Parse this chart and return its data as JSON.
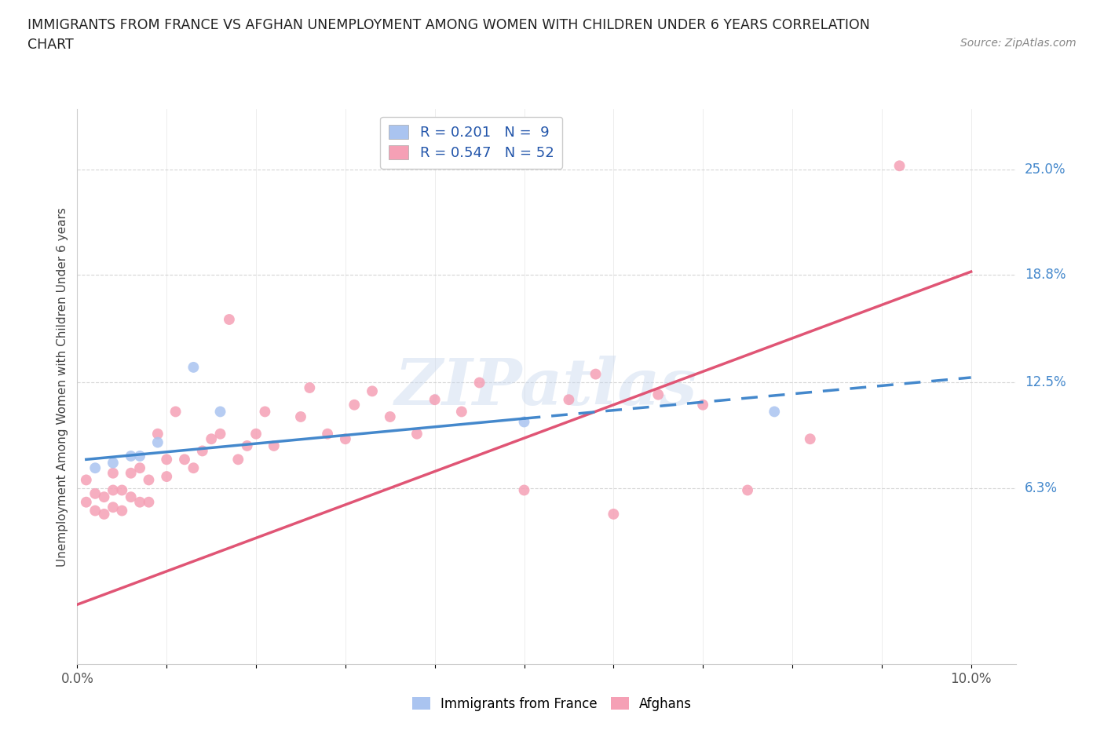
{
  "title_line1": "IMMIGRANTS FROM FRANCE VS AFGHAN UNEMPLOYMENT AMONG WOMEN WITH CHILDREN UNDER 6 YEARS CORRELATION",
  "title_line2": "CHART",
  "source": "Source: ZipAtlas.com",
  "ylabel": "Unemployment Among Women with Children Under 6 years",
  "xlim": [
    0.0,
    0.105
  ],
  "ylim": [
    -0.04,
    0.285
  ],
  "france_R": "0.201",
  "france_N": "9",
  "afghan_R": "0.547",
  "afghan_N": "52",
  "france_color": "#aac4f0",
  "afghan_color": "#f5a0b5",
  "france_line_color": "#4488cc",
  "afghan_line_color": "#e05575",
  "ytick_right_labels": [
    "6.3%",
    "12.5%",
    "18.8%",
    "25.0%"
  ],
  "ytick_right_values": [
    0.063,
    0.125,
    0.188,
    0.25
  ],
  "france_scatter_x": [
    0.002,
    0.004,
    0.006,
    0.007,
    0.009,
    0.013,
    0.016,
    0.05,
    0.078
  ],
  "france_scatter_y": [
    0.075,
    0.078,
    0.082,
    0.082,
    0.09,
    0.134,
    0.108,
    0.102,
    0.108
  ],
  "afghan_scatter_x": [
    0.001,
    0.001,
    0.002,
    0.002,
    0.003,
    0.003,
    0.004,
    0.004,
    0.004,
    0.005,
    0.005,
    0.006,
    0.006,
    0.007,
    0.007,
    0.008,
    0.008,
    0.009,
    0.01,
    0.01,
    0.011,
    0.012,
    0.013,
    0.014,
    0.015,
    0.016,
    0.017,
    0.018,
    0.019,
    0.02,
    0.021,
    0.022,
    0.025,
    0.026,
    0.028,
    0.03,
    0.031,
    0.033,
    0.035,
    0.038,
    0.04,
    0.043,
    0.045,
    0.05,
    0.055,
    0.058,
    0.06,
    0.065,
    0.07,
    0.075,
    0.082,
    0.092
  ],
  "afghan_scatter_y": [
    0.055,
    0.068,
    0.05,
    0.06,
    0.048,
    0.058,
    0.052,
    0.062,
    0.072,
    0.05,
    0.062,
    0.058,
    0.072,
    0.055,
    0.075,
    0.055,
    0.068,
    0.095,
    0.08,
    0.07,
    0.108,
    0.08,
    0.075,
    0.085,
    0.092,
    0.095,
    0.162,
    0.08,
    0.088,
    0.095,
    0.108,
    0.088,
    0.105,
    0.122,
    0.095,
    0.092,
    0.112,
    0.12,
    0.105,
    0.095,
    0.115,
    0.108,
    0.125,
    0.062,
    0.115,
    0.13,
    0.048,
    0.118,
    0.112,
    0.062,
    0.092,
    0.252
  ],
  "watermark": "ZIPatlas",
  "background_color": "#ffffff",
  "grid_color": "#cccccc",
  "afghan_line_x0": 0.0,
  "afghan_line_y0": -0.005,
  "afghan_line_x1": 0.1,
  "afghan_line_y1": 0.19,
  "france_line_solid_x0": 0.001,
  "france_line_solid_y0": 0.08,
  "france_line_solid_x1": 0.05,
  "france_line_solid_y1": 0.104,
  "france_line_dash_x0": 0.05,
  "france_line_dash_y0": 0.104,
  "france_line_dash_x1": 0.1,
  "france_line_dash_y1": 0.128
}
